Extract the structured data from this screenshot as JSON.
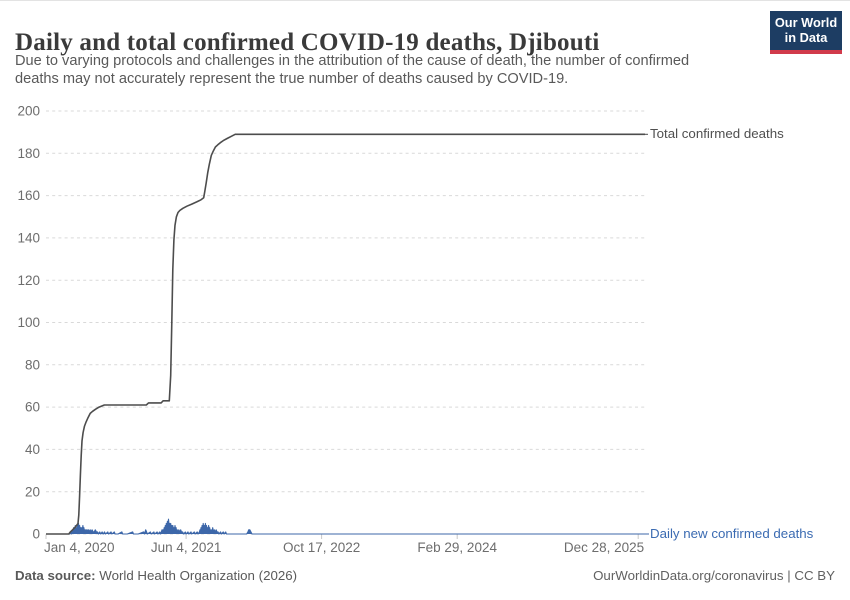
{
  "header": {
    "title": "Daily and total confirmed COVID-19 deaths, Djibouti",
    "subtitle_line1": "Due to varying protocols and challenges in the attribution of the cause of death, the number of confirmed",
    "subtitle_line2": "deaths may not accurately represent the true number of deaths caused by COVID-19.",
    "logo": {
      "line1": "Our World",
      "line2": "in Data",
      "bg_color": "#1d3d63",
      "stripe_color": "#d13a4b"
    }
  },
  "chart_data": {
    "type": "line",
    "title": "Daily and total confirmed COVID-19 deaths, Djibouti",
    "xlabel": "",
    "ylabel": "",
    "ylim": [
      0,
      200
    ],
    "y_ticks": [
      0,
      20,
      40,
      60,
      80,
      100,
      120,
      140,
      160,
      180,
      200
    ],
    "x_domain_days": [
      0,
      2210
    ],
    "x_start_label": "Jan 4, 2020",
    "grid": "dashed-horizontal",
    "legend_position": "right-of-line-labels",
    "x_ticks": [
      {
        "label": "Jan 4, 2020",
        "day": 0
      },
      {
        "label": "Jun 4, 2021",
        "day": 517
      },
      {
        "label": "Oct 17, 2022",
        "day": 1017
      },
      {
        "label": "Feb 29, 2024",
        "day": 1517
      },
      {
        "label": "Dec 28, 2025",
        "day": 2185
      }
    ],
    "series": [
      {
        "name": "Total confirmed deaths",
        "color": "#4d4d4d",
        "final_value": 189,
        "points": [
          [
            0,
            0
          ],
          [
            84,
            0
          ],
          [
            90,
            1
          ],
          [
            98,
            2
          ],
          [
            106,
            3
          ],
          [
            113,
            4
          ],
          [
            118,
            5
          ],
          [
            121,
            9
          ],
          [
            124,
            18
          ],
          [
            127,
            28
          ],
          [
            130,
            37
          ],
          [
            133,
            44
          ],
          [
            137,
            48
          ],
          [
            142,
            51
          ],
          [
            148,
            53
          ],
          [
            155,
            55
          ],
          [
            163,
            57
          ],
          [
            172,
            58
          ],
          [
            183,
            59
          ],
          [
            196,
            60
          ],
          [
            215,
            61
          ],
          [
            370,
            61
          ],
          [
            378,
            62
          ],
          [
            425,
            62
          ],
          [
            432,
            63
          ],
          [
            455,
            63
          ],
          [
            460,
            75
          ],
          [
            464,
            100
          ],
          [
            468,
            125
          ],
          [
            472,
            139
          ],
          [
            476,
            146
          ],
          [
            481,
            150
          ],
          [
            487,
            152
          ],
          [
            494,
            153
          ],
          [
            505,
            154
          ],
          [
            520,
            155
          ],
          [
            538,
            156
          ],
          [
            556,
            157
          ],
          [
            572,
            158
          ],
          [
            582,
            159
          ],
          [
            586,
            162
          ],
          [
            591,
            166
          ],
          [
            597,
            171
          ],
          [
            603,
            175
          ],
          [
            610,
            179
          ],
          [
            617,
            181
          ],
          [
            625,
            183
          ],
          [
            634,
            184
          ],
          [
            643,
            185
          ],
          [
            654,
            186
          ],
          [
            668,
            187
          ],
          [
            683,
            188
          ],
          [
            698,
            189
          ],
          [
            2210,
            189
          ]
        ]
      },
      {
        "name": "Daily new confirmed deaths",
        "color": "#3d67a9",
        "label_color": "#3b6bb2",
        "fill": true,
        "points": [
          [
            0,
            0
          ],
          [
            88,
            0
          ],
          [
            92,
            1
          ],
          [
            94,
            0
          ],
          [
            96,
            1
          ],
          [
            98,
            2
          ],
          [
            100,
            1
          ],
          [
            102,
            3
          ],
          [
            104,
            1
          ],
          [
            106,
            2
          ],
          [
            108,
            4
          ],
          [
            110,
            2
          ],
          [
            112,
            3
          ],
          [
            114,
            1
          ],
          [
            116,
            4
          ],
          [
            118,
            2
          ],
          [
            120,
            5
          ],
          [
            122,
            3
          ],
          [
            124,
            4
          ],
          [
            126,
            2
          ],
          [
            128,
            3
          ],
          [
            130,
            1
          ],
          [
            132,
            3
          ],
          [
            134,
            2
          ],
          [
            136,
            4
          ],
          [
            138,
            2
          ],
          [
            140,
            3
          ],
          [
            142,
            1
          ],
          [
            144,
            2
          ],
          [
            146,
            1
          ],
          [
            148,
            2
          ],
          [
            150,
            1
          ],
          [
            152,
            2
          ],
          [
            154,
            1
          ],
          [
            157,
            2
          ],
          [
            160,
            1
          ],
          [
            163,
            2
          ],
          [
            166,
            1
          ],
          [
            170,
            2
          ],
          [
            174,
            1
          ],
          [
            178,
            1
          ],
          [
            182,
            2
          ],
          [
            186,
            1
          ],
          [
            190,
            1
          ],
          [
            194,
            0
          ],
          [
            198,
            1
          ],
          [
            202,
            0
          ],
          [
            207,
            1
          ],
          [
            211,
            0
          ],
          [
            216,
            1
          ],
          [
            220,
            0
          ],
          [
            228,
            1
          ],
          [
            231,
            0
          ],
          [
            240,
            1
          ],
          [
            243,
            0
          ],
          [
            252,
            1
          ],
          [
            255,
            0
          ],
          [
            266,
            0
          ],
          [
            280,
            1
          ],
          [
            283,
            0
          ],
          [
            300,
            0
          ],
          [
            320,
            1
          ],
          [
            323,
            0
          ],
          [
            340,
            0
          ],
          [
            360,
            1
          ],
          [
            363,
            0
          ],
          [
            368,
            2
          ],
          [
            371,
            1
          ],
          [
            374,
            0
          ],
          [
            385,
            1
          ],
          [
            388,
            0
          ],
          [
            398,
            1
          ],
          [
            401,
            0
          ],
          [
            410,
            1
          ],
          [
            413,
            0
          ],
          [
            420,
            1
          ],
          [
            423,
            0
          ],
          [
            428,
            2
          ],
          [
            430,
            1
          ],
          [
            432,
            2
          ],
          [
            434,
            1
          ],
          [
            436,
            3
          ],
          [
            438,
            2
          ],
          [
            440,
            4
          ],
          [
            442,
            2
          ],
          [
            444,
            5
          ],
          [
            446,
            3
          ],
          [
            448,
            6
          ],
          [
            450,
            4
          ],
          [
            452,
            7
          ],
          [
            454,
            4
          ],
          [
            456,
            5
          ],
          [
            458,
            3
          ],
          [
            460,
            5
          ],
          [
            462,
            3
          ],
          [
            464,
            4
          ],
          [
            466,
            2
          ],
          [
            468,
            4
          ],
          [
            470,
            2
          ],
          [
            472,
            3
          ],
          [
            474,
            2
          ],
          [
            476,
            4
          ],
          [
            478,
            2
          ],
          [
            480,
            3
          ],
          [
            482,
            1
          ],
          [
            484,
            2
          ],
          [
            487,
            1
          ],
          [
            490,
            2
          ],
          [
            493,
            1
          ],
          [
            497,
            2
          ],
          [
            500,
            1
          ],
          [
            504,
            1
          ],
          [
            508,
            0
          ],
          [
            514,
            1
          ],
          [
            517,
            0
          ],
          [
            524,
            1
          ],
          [
            527,
            0
          ],
          [
            535,
            1
          ],
          [
            538,
            0
          ],
          [
            547,
            1
          ],
          [
            550,
            0
          ],
          [
            558,
            1
          ],
          [
            561,
            0
          ],
          [
            566,
            1
          ],
          [
            568,
            2
          ],
          [
            570,
            1
          ],
          [
            572,
            3
          ],
          [
            574,
            2
          ],
          [
            576,
            4
          ],
          [
            578,
            2
          ],
          [
            580,
            5
          ],
          [
            582,
            3
          ],
          [
            584,
            4
          ],
          [
            586,
            2
          ],
          [
            588,
            5
          ],
          [
            590,
            3
          ],
          [
            592,
            4
          ],
          [
            594,
            2
          ],
          [
            596,
            3
          ],
          [
            598,
            2
          ],
          [
            600,
            4
          ],
          [
            602,
            2
          ],
          [
            604,
            3
          ],
          [
            606,
            1
          ],
          [
            609,
            2
          ],
          [
            612,
            1
          ],
          [
            615,
            3
          ],
          [
            618,
            1
          ],
          [
            621,
            2
          ],
          [
            624,
            1
          ],
          [
            628,
            2
          ],
          [
            631,
            1
          ],
          [
            635,
            1
          ],
          [
            638,
            0
          ],
          [
            644,
            1
          ],
          [
            647,
            0
          ],
          [
            654,
            1
          ],
          [
            657,
            0
          ],
          [
            663,
            1
          ],
          [
            666,
            0
          ],
          [
            740,
            0
          ],
          [
            745,
            1
          ],
          [
            748,
            2
          ],
          [
            752,
            2
          ],
          [
            756,
            1
          ],
          [
            760,
            0
          ],
          [
            2210,
            0
          ]
        ]
      }
    ],
    "style": {
      "grid_color": "#d9d9d9",
      "tick_color": "#c8c8c8",
      "axis_text_color": "#6d6d6d"
    }
  },
  "labels": {
    "total_series": "Total confirmed deaths",
    "daily_series": "Daily new confirmed deaths"
  },
  "footer": {
    "datasource_label": "Data source:",
    "datasource_value": " World Health Organization (2026)",
    "license": "OurWorldinData.org/coronavirus | CC BY"
  }
}
